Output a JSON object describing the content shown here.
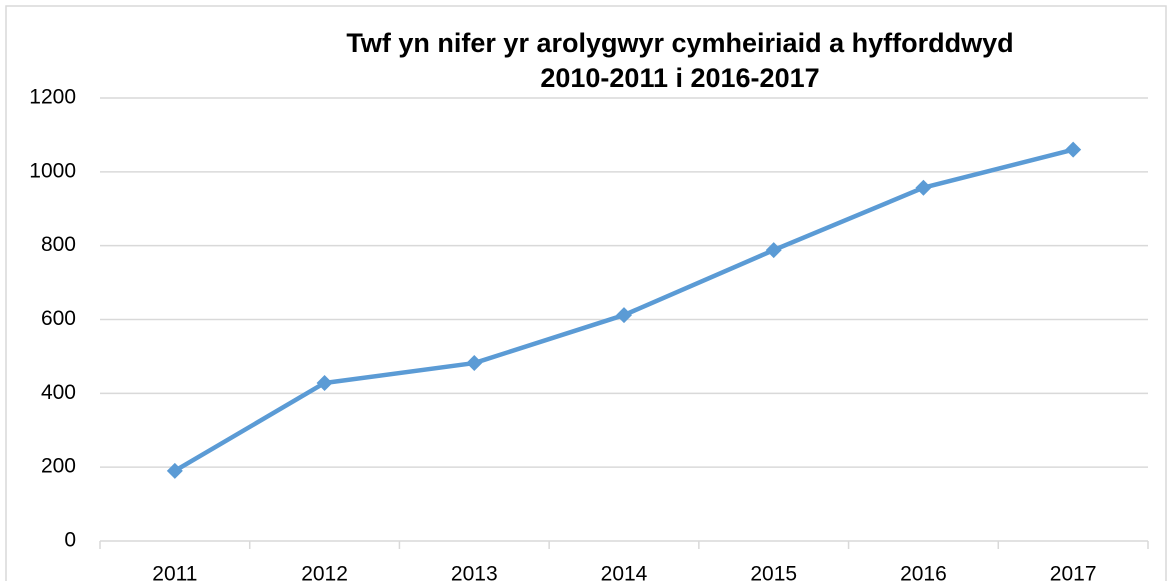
{
  "chart_data": {
    "type": "line",
    "title": [
      "Twf yn nifer yr arolygwyr cymheiriaid a hyfforddwyd",
      "2010-2011 i 2016-2017"
    ],
    "categories": [
      "2011",
      "2012",
      "2013",
      "2014",
      "2015",
      "2016",
      "2017"
    ],
    "values": [
      190,
      428,
      482,
      612,
      788,
      957,
      1060
    ],
    "color": "#5b9bd5",
    "ylim": [
      0,
      1200
    ],
    "yticks": [
      0,
      200,
      400,
      600,
      800,
      1000,
      1200
    ],
    "grid": true
  }
}
